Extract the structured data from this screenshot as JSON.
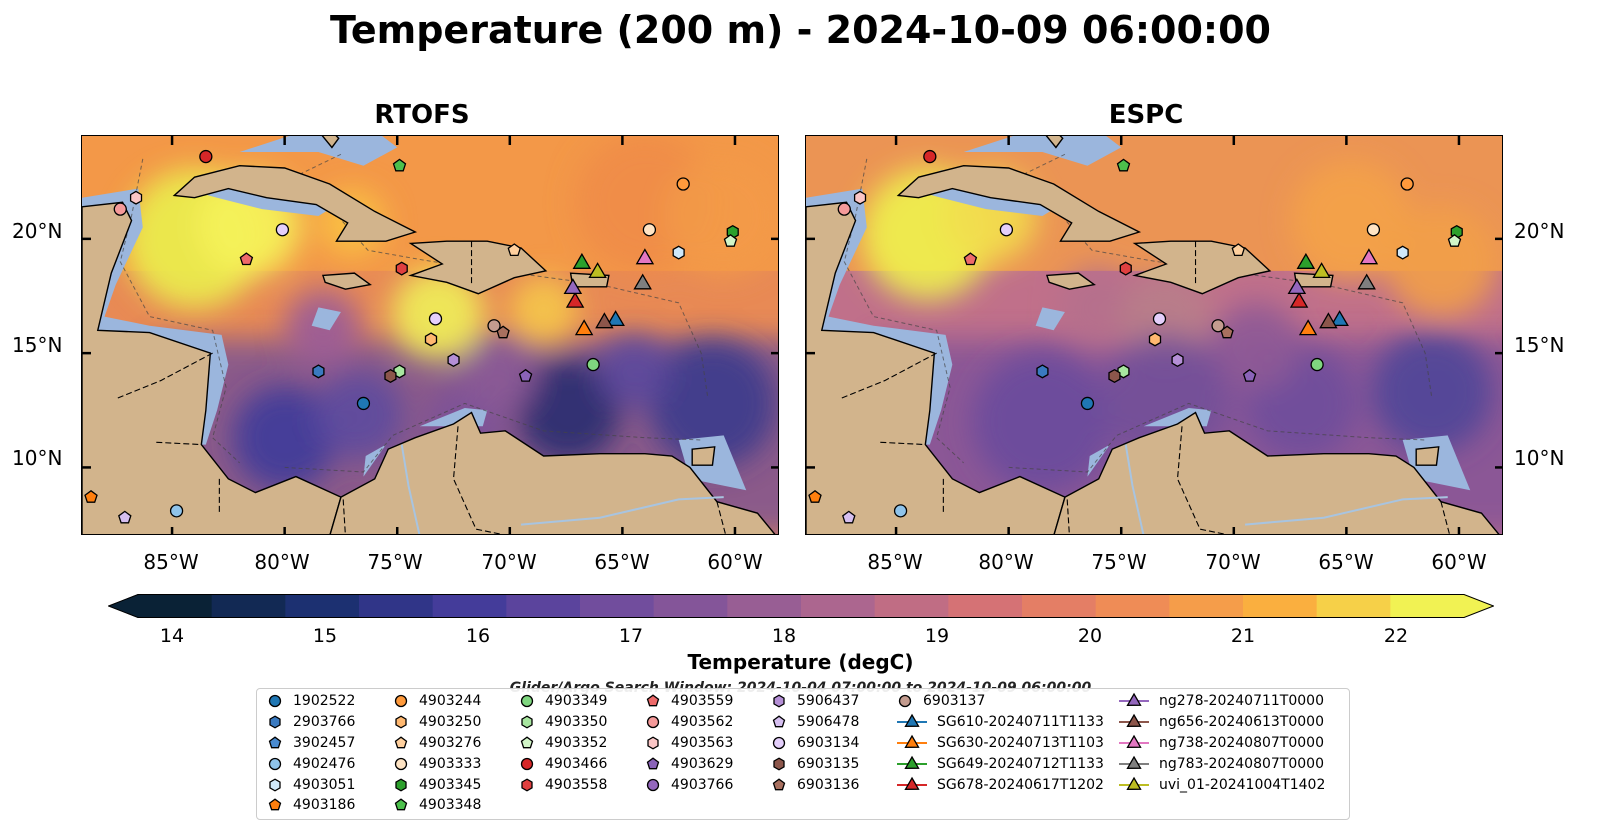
{
  "title": "Temperature (200 m) - 2024-10-09 06:00:00",
  "panels": [
    {
      "title": "RTOFS"
    },
    {
      "title": "ESPC"
    }
  ],
  "lat_labels": [
    "20°N",
    "15°N",
    "10°N"
  ],
  "lon_labels": [
    "85°W",
    "80°W",
    "75°W",
    "70°W",
    "65°W",
    "60°W"
  ],
  "map_extent": {
    "lon": [
      -89,
      -58
    ],
    "lat": [
      7,
      24.5
    ]
  },
  "colorbar": {
    "label": "Temperature (degC)",
    "ticks": [
      "14",
      "15",
      "16",
      "17",
      "18",
      "19",
      "20",
      "21",
      "22"
    ],
    "range": [
      14,
      22
    ],
    "colormap": "thermal",
    "colors": [
      "#0a2236",
      "#1a2f6e",
      "#3f3a9a",
      "#6b4a9e",
      "#8f5a97",
      "#b56a8c",
      "#dc7470",
      "#f28f52",
      "#fab13e",
      "#f1f253"
    ]
  },
  "search_window": "Glider/Argo Search Window: 2024-10-04 07:00:00 to 2024-10-09 06:00:00",
  "colors": {
    "land": "#d2b48c",
    "shelf": "#9bb6dd",
    "river": "#a8c4e0"
  },
  "legend": [
    {
      "label": "1902522",
      "marker": "circle",
      "color": "#1f77b4"
    },
    {
      "label": "2903766",
      "marker": "hexagon",
      "color": "#3a7ac0"
    },
    {
      "label": "3902457",
      "marker": "pentagon",
      "color": "#4a8bd0"
    },
    {
      "label": "4902476",
      "marker": "circle",
      "color": "#8fc3ea"
    },
    {
      "label": "4903051",
      "marker": "hexagon",
      "color": "#cfe8fa"
    },
    {
      "label": "4903186",
      "marker": "pentagon",
      "color": "#ff7f0e"
    },
    {
      "label": "4903244",
      "marker": "circle",
      "color": "#ff9a3c"
    },
    {
      "label": "4903250",
      "marker": "hexagon",
      "color": "#ffb870"
    },
    {
      "label": "4903276",
      "marker": "pentagon",
      "color": "#ffd09e"
    },
    {
      "label": "4903333",
      "marker": "circle",
      "color": "#ffe4c4"
    },
    {
      "label": "4903345",
      "marker": "hexagon",
      "color": "#2ca02c"
    },
    {
      "label": "4903348",
      "marker": "pentagon",
      "color": "#4cc04c"
    },
    {
      "label": "4903349",
      "marker": "circle",
      "color": "#7fd67f"
    },
    {
      "label": "4903350",
      "marker": "hexagon",
      "color": "#a8e6a0"
    },
    {
      "label": "4903352",
      "marker": "pentagon",
      "color": "#d2f5c8"
    },
    {
      "label": "4903466",
      "marker": "circle",
      "color": "#d62728"
    },
    {
      "label": "4903558",
      "marker": "hexagon",
      "color": "#e04040"
    },
    {
      "label": "4903559",
      "marker": "pentagon",
      "color": "#ee6a6a"
    },
    {
      "label": "4903562",
      "marker": "circle",
      "color": "#f59a9a"
    },
    {
      "label": "4903563",
      "marker": "hexagon",
      "color": "#fbc6c6"
    },
    {
      "label": "4903629",
      "marker": "pentagon",
      "color": "#8a63b8"
    },
    {
      "label": "4903766",
      "marker": "circle",
      "color": "#9467bd"
    },
    {
      "label": "5906437",
      "marker": "hexagon",
      "color": "#b58fd6"
    },
    {
      "label": "5906478",
      "marker": "pentagon",
      "color": "#d6bff0"
    },
    {
      "label": "6903134",
      "marker": "circle",
      "color": "#e4cffb"
    },
    {
      "label": "6903135",
      "marker": "hexagon",
      "color": "#8c564b"
    },
    {
      "label": "6903136",
      "marker": "pentagon",
      "color": "#a8705f"
    },
    {
      "label": "6903137",
      "marker": "circle",
      "color": "#c49c8f"
    },
    {
      "label": "SG610-20240711T1133",
      "marker": "triangle",
      "color": "#1f77b4"
    },
    {
      "label": "SG630-20240713T1103",
      "marker": "triangle",
      "color": "#ff7f0e"
    },
    {
      "label": "SG649-20240712T1133",
      "marker": "triangle",
      "color": "#2ca02c"
    },
    {
      "label": "SG678-20240617T1202",
      "marker": "triangle",
      "color": "#d62728"
    },
    {
      "label": "ng278-20240711T0000",
      "marker": "triangle",
      "color": "#9467bd"
    },
    {
      "label": "ng656-20240613T0000",
      "marker": "triangle",
      "color": "#8c564b"
    },
    {
      "label": "ng738-20240807T0000",
      "marker": "triangle",
      "color": "#e377c2"
    },
    {
      "label": "ng783-20240807T0000",
      "marker": "triangle",
      "color": "#7f7f7f"
    },
    {
      "label": "uvi_01-20241004T1402",
      "marker": "triangle",
      "color": "#bcbd22"
    }
  ],
  "observations": [
    {
      "id": "1902522",
      "lon": -76.5,
      "lat": 12.8
    },
    {
      "id": "2903766",
      "lon": -78.5,
      "lat": 14.2
    },
    {
      "id": "4902476",
      "lon": -84.8,
      "lat": 8.1
    },
    {
      "id": "4903051",
      "lon": -62.5,
      "lat": 19.4
    },
    {
      "id": "4903186",
      "lon": -88.6,
      "lat": 8.7
    },
    {
      "id": "4903244",
      "lon": -62.3,
      "lat": 22.4
    },
    {
      "id": "4903250",
      "lon": -73.5,
      "lat": 15.6
    },
    {
      "id": "4903276",
      "lon": -69.8,
      "lat": 19.5
    },
    {
      "id": "4903333",
      "lon": -63.8,
      "lat": 20.4
    },
    {
      "id": "4903345",
      "lon": -60.1,
      "lat": 20.3
    },
    {
      "id": "4903348",
      "lon": -74.9,
      "lat": 23.2
    },
    {
      "id": "4903349",
      "lon": -66.3,
      "lat": 14.5
    },
    {
      "id": "4903350",
      "lon": -74.9,
      "lat": 14.2
    },
    {
      "id": "4903352",
      "lon": -60.2,
      "lat": 19.9
    },
    {
      "id": "4903466",
      "lon": -83.5,
      "lat": 23.6
    },
    {
      "id": "4903558",
      "lon": -74.8,
      "lat": 18.7
    },
    {
      "id": "4903559",
      "lon": -81.7,
      "lat": 19.1
    },
    {
      "id": "4903562",
      "lon": -87.3,
      "lat": 21.3
    },
    {
      "id": "4903563",
      "lon": -86.6,
      "lat": 21.8
    },
    {
      "id": "4903629",
      "lon": -69.3,
      "lat": 14.0
    },
    {
      "id": "5906437",
      "lon": -72.5,
      "lat": 14.7
    },
    {
      "id": "5906478",
      "lon": -87.1,
      "lat": 7.8
    },
    {
      "id": "6903134",
      "lon": -80.1,
      "lat": 20.4
    },
    {
      "id": "6903134",
      "lon": -73.3,
      "lat": 16.5
    },
    {
      "id": "6903135",
      "lon": -75.3,
      "lat": 14.0
    },
    {
      "id": "6903136",
      "lon": -70.3,
      "lat": 15.9
    },
    {
      "id": "6903137",
      "lon": -70.7,
      "lat": 16.2
    },
    {
      "id": "SG610-20240711T1133",
      "lon": -65.3,
      "lat": 16.5
    },
    {
      "id": "SG630-20240713T1103",
      "lon": -66.7,
      "lat": 16.1
    },
    {
      "id": "SG649-20240712T1133",
      "lon": -66.8,
      "lat": 19.0
    },
    {
      "id": "SG678-20240617T1202",
      "lon": -67.1,
      "lat": 17.3
    },
    {
      "id": "ng278-20240711T0000",
      "lon": -67.2,
      "lat": 17.9
    },
    {
      "id": "ng656-20240613T0000",
      "lon": -65.8,
      "lat": 16.4
    },
    {
      "id": "ng738-20240807T0000",
      "lon": -64.0,
      "lat": 19.2
    },
    {
      "id": "ng783-20240807T0000",
      "lon": -64.1,
      "lat": 18.1
    },
    {
      "id": "uvi_01-20241004T1402",
      "lon": -66.1,
      "lat": 18.6
    }
  ]
}
